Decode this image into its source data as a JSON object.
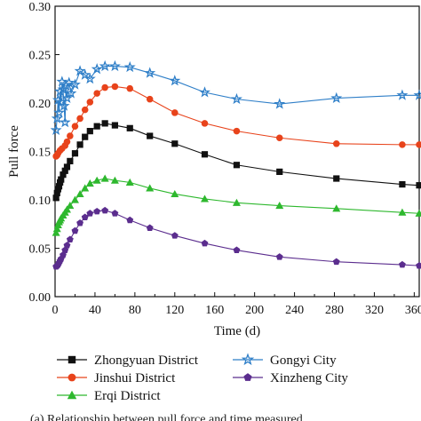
{
  "caption": "(a) Relationship between pull force and time measured",
  "chart_data": {
    "type": "line",
    "xlabel": "Time (d)",
    "ylabel": "Pull force",
    "xlim": [
      0,
      365
    ],
    "ylim": [
      0,
      0.3
    ],
    "xticks": [
      0,
      40,
      80,
      120,
      160,
      200,
      240,
      280,
      320,
      360
    ],
    "yticks": [
      0.0,
      0.05,
      0.1,
      0.15,
      0.2,
      0.25,
      0.3
    ],
    "xtick_labels": [
      "0",
      "40",
      "80",
      "120",
      "160",
      "200",
      "240",
      "280",
      "320",
      "360"
    ],
    "ytick_labels": [
      "0.00",
      "0.05",
      "0.10",
      "0.15",
      "0.20",
      "0.25",
      "0.30"
    ],
    "legend_position": "bottom, two columns",
    "series": [
      {
        "name": "Zhongyuan District",
        "color": "#111111",
        "marker": "square",
        "x": [
          1,
          2,
          3,
          4,
          5,
          6,
          8,
          10,
          12,
          15,
          20,
          25,
          30,
          35,
          42,
          50,
          60,
          75,
          95,
          120,
          150,
          182,
          225,
          282,
          348,
          365
        ],
        "y": [
          0.102,
          0.107,
          0.111,
          0.114,
          0.118,
          0.121,
          0.126,
          0.13,
          0.134,
          0.14,
          0.148,
          0.157,
          0.165,
          0.171,
          0.176,
          0.179,
          0.177,
          0.174,
          0.166,
          0.158,
          0.147,
          0.136,
          0.129,
          0.122,
          0.116,
          0.115
        ]
      },
      {
        "name": "Jinshui District",
        "color": "#e8431b",
        "marker": "circle",
        "x": [
          1,
          2,
          3,
          5,
          7,
          10,
          12,
          15,
          20,
          25,
          30,
          35,
          42,
          50,
          60,
          75,
          95,
          120,
          150,
          182,
          225,
          282,
          348,
          365
        ],
        "y": [
          0.145,
          0.146,
          0.148,
          0.151,
          0.153,
          0.156,
          0.16,
          0.166,
          0.176,
          0.184,
          0.193,
          0.201,
          0.21,
          0.216,
          0.217,
          0.215,
          0.204,
          0.19,
          0.179,
          0.171,
          0.164,
          0.158,
          0.157,
          0.157
        ]
      },
      {
        "name": "Erqi District",
        "color": "#2eb82e",
        "marker": "triangle",
        "x": [
          1,
          2,
          3,
          4,
          5,
          6,
          8,
          10,
          12,
          15,
          20,
          25,
          30,
          35,
          42,
          50,
          60,
          75,
          95,
          120,
          150,
          182,
          225,
          282,
          348,
          365
        ],
        "y": [
          0.066,
          0.07,
          0.074,
          0.077,
          0.079,
          0.081,
          0.084,
          0.087,
          0.09,
          0.094,
          0.1,
          0.106,
          0.112,
          0.117,
          0.12,
          0.122,
          0.12,
          0.118,
          0.112,
          0.106,
          0.101,
          0.097,
          0.094,
          0.091,
          0.087,
          0.086
        ]
      },
      {
        "name": "Gongyi City",
        "color": "#2f7fc8",
        "marker": "star",
        "x": [
          1,
          2,
          3,
          4,
          5,
          6,
          7,
          8,
          9,
          10,
          11,
          12,
          14,
          16,
          20,
          25,
          30,
          35,
          42,
          50,
          60,
          75,
          95,
          120,
          150,
          182,
          225,
          282,
          348,
          365
        ],
        "y": [
          0.172,
          0.184,
          0.203,
          0.19,
          0.212,
          0.201,
          0.222,
          0.214,
          0.197,
          0.18,
          0.218,
          0.205,
          0.221,
          0.21,
          0.219,
          0.233,
          0.229,
          0.225,
          0.235,
          0.238,
          0.238,
          0.237,
          0.231,
          0.223,
          0.211,
          0.204,
          0.199,
          0.205,
          0.208,
          0.208
        ]
      },
      {
        "name": "Xinzheng City",
        "color": "#5b2d8e",
        "marker": "pentagon",
        "x": [
          1,
          2,
          3,
          4,
          5,
          6,
          8,
          10,
          12,
          15,
          20,
          25,
          30,
          35,
          42,
          50,
          60,
          75,
          95,
          120,
          150,
          182,
          225,
          282,
          348,
          365
        ],
        "y": [
          0.031,
          0.032,
          0.033,
          0.035,
          0.037,
          0.039,
          0.043,
          0.048,
          0.053,
          0.059,
          0.068,
          0.076,
          0.082,
          0.086,
          0.088,
          0.089,
          0.086,
          0.079,
          0.071,
          0.063,
          0.055,
          0.048,
          0.041,
          0.036,
          0.033,
          0.032
        ]
      }
    ]
  }
}
